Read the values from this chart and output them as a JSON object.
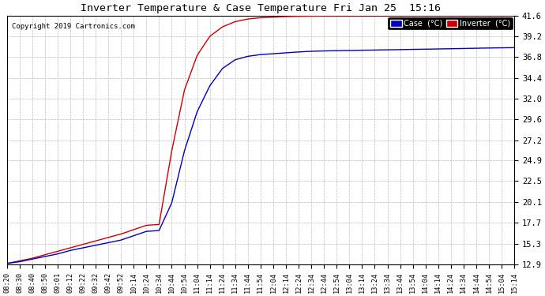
{
  "title": "Inverter Temperature & Case Temperature Fri Jan 25  15:16",
  "copyright": "Copyright 2019 Cartronics.com",
  "ylabel_values": [
    12.9,
    15.3,
    17.7,
    20.1,
    22.5,
    24.9,
    27.2,
    29.6,
    32.0,
    34.4,
    36.8,
    39.2,
    41.6
  ],
  "ylim": [
    12.9,
    41.6
  ],
  "x_tick_labels": [
    "08:20",
    "08:30",
    "08:40",
    "08:50",
    "09:01",
    "09:12",
    "09:22",
    "09:32",
    "09:42",
    "09:52",
    "10:14",
    "10:24",
    "10:34",
    "10:44",
    "10:54",
    "11:04",
    "11:14",
    "11:24",
    "11:34",
    "11:44",
    "11:54",
    "12:04",
    "12:14",
    "12:24",
    "12:34",
    "12:44",
    "12:54",
    "13:04",
    "13:14",
    "13:24",
    "13:34",
    "13:44",
    "13:54",
    "14:04",
    "14:14",
    "14:24",
    "14:34",
    "14:44",
    "14:54",
    "15:04",
    "15:14"
  ],
  "case_color": "#0000bb",
  "inverter_color": "#cc0000",
  "bg_color": "#ffffff",
  "grid_color": "#bbbbbb",
  "inverter_data": [
    13.0,
    13.3,
    13.6,
    14.0,
    14.4,
    14.8,
    15.2,
    15.6,
    16.0,
    16.4,
    16.9,
    17.4,
    17.5,
    26.0,
    33.0,
    37.0,
    39.2,
    40.3,
    40.9,
    41.2,
    41.35,
    41.42,
    41.48,
    41.52,
    41.54,
    41.56,
    41.57,
    41.58,
    41.59,
    41.59,
    41.59,
    41.6,
    41.6,
    41.6,
    41.6,
    41.6,
    41.6,
    41.6,
    41.6,
    41.6,
    41.6
  ],
  "case_data": [
    13.0,
    13.2,
    13.5,
    13.8,
    14.1,
    14.5,
    14.8,
    15.1,
    15.4,
    15.7,
    16.2,
    16.7,
    16.8,
    20.0,
    26.0,
    30.5,
    33.5,
    35.5,
    36.5,
    36.9,
    37.1,
    37.2,
    37.3,
    37.4,
    37.48,
    37.52,
    37.55,
    37.57,
    37.6,
    37.62,
    37.65,
    37.67,
    37.7,
    37.72,
    37.75,
    37.77,
    37.8,
    37.83,
    37.86,
    37.88,
    37.9
  ]
}
